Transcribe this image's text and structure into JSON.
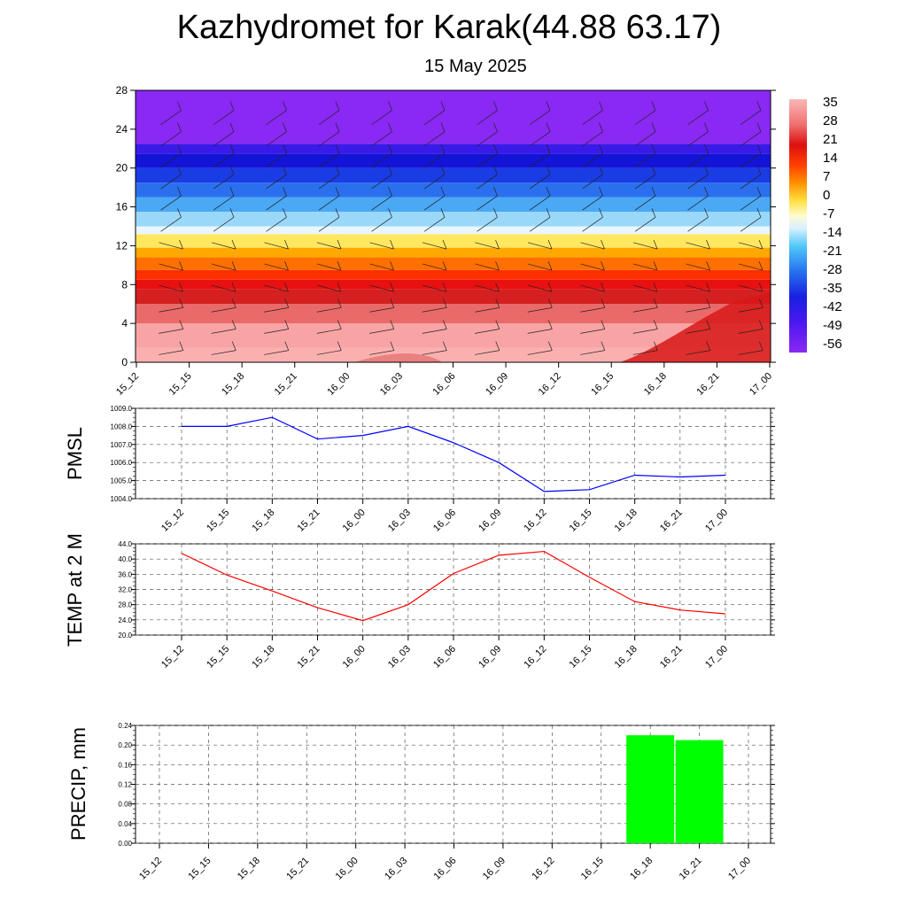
{
  "header": {
    "title": "Kazhydromet for Karak(44.88 63.17)",
    "subtitle": "15 May 2025"
  },
  "chart_data": [
    {
      "type": "heatmap",
      "ylim": [
        0,
        28
      ],
      "yticks": [
        0,
        4,
        8,
        12,
        16,
        20,
        24,
        28
      ],
      "x_tick_labels": [
        "15_12",
        "15_15",
        "15_18",
        "15_21",
        "16_00",
        "16_03",
        "16_06",
        "16_09",
        "16_12",
        "16_15",
        "16_18",
        "16_21",
        "17_00"
      ],
      "colorbar": {
        "labels": [
          "35",
          "28",
          "21",
          "14",
          "7",
          "0",
          "-7",
          "-14",
          "-21",
          "-28",
          "-35",
          "-42",
          "-49",
          "-56"
        ],
        "stops": [
          {
            "offset": 0,
            "color": "#fbb6b6"
          },
          {
            "offset": 0.1,
            "color": "#f07070"
          },
          {
            "offset": 0.18,
            "color": "#dd1010"
          },
          {
            "offset": 0.26,
            "color": "#ff4000"
          },
          {
            "offset": 0.33,
            "color": "#ff9000"
          },
          {
            "offset": 0.4,
            "color": "#ffe040"
          },
          {
            "offset": 0.46,
            "color": "#fffbd0"
          },
          {
            "offset": 0.51,
            "color": "#d8f0ff"
          },
          {
            "offset": 0.58,
            "color": "#50c8f8"
          },
          {
            "offset": 0.67,
            "color": "#2a7af0"
          },
          {
            "offset": 0.78,
            "color": "#1820e0"
          },
          {
            "offset": 0.88,
            "color": "#4a18f0"
          },
          {
            "offset": 1,
            "color": "#8a28f4"
          }
        ]
      },
      "field_bands": [
        {
          "from": 0,
          "to": 1.5,
          "color": "#fbb0b0"
        },
        {
          "from": 1.5,
          "to": 4,
          "color": "#f8a4a4"
        },
        {
          "from": 4,
          "to": 6,
          "color": "#ea6a6a"
        },
        {
          "from": 6,
          "to": 7.5,
          "color": "#d42020"
        },
        {
          "from": 7.5,
          "to": 8.5,
          "color": "#e81010"
        },
        {
          "from": 8.5,
          "to": 9.5,
          "color": "#ff3000"
        },
        {
          "from": 9.5,
          "to": 10.8,
          "color": "#ff7000"
        },
        {
          "from": 10.8,
          "to": 11.8,
          "color": "#ffa800"
        },
        {
          "from": 11.8,
          "to": 13.2,
          "color": "#ffe860"
        },
        {
          "from": 13.2,
          "to": 14,
          "color": "#e8f6ff"
        },
        {
          "from": 14,
          "to": 15.5,
          "color": "#9ad8fa"
        },
        {
          "from": 15.5,
          "to": 17,
          "color": "#4aa8f4"
        },
        {
          "from": 17,
          "to": 18.5,
          "color": "#2a70ee"
        },
        {
          "from": 18.5,
          "to": 20,
          "color": "#1a3ce4"
        },
        {
          "from": 20,
          "to": 21.5,
          "color": "#1414d8"
        },
        {
          "from": 21.5,
          "to": 22.5,
          "color": "#3a1ae8"
        },
        {
          "from": 22.5,
          "to": 28,
          "color": "#8a28f4"
        }
      ]
    },
    {
      "type": "line",
      "ylabel": "PMSL",
      "x": [
        "15_12",
        "15_15",
        "15_18",
        "15_21",
        "16_00",
        "16_03",
        "16_06",
        "16_09",
        "16_12",
        "16_15",
        "16_18",
        "16_21",
        "17_00"
      ],
      "series": [
        {
          "values": [
            1008.0,
            1008.0,
            1008.5,
            1007.3,
            1007.5,
            1008.0,
            1007.1,
            1006.0,
            1004.4,
            1004.5,
            1005.3,
            1005.2,
            1005.3
          ]
        }
      ],
      "ylim": [
        1004.0,
        1009.0
      ],
      "yticks": [
        "1004.0",
        "1005.0",
        "1006.0",
        "1007.0",
        "1008.0",
        "1009.0"
      ],
      "color": "#0000ff"
    },
    {
      "type": "line",
      "ylabel": "TEMP at 2 M",
      "x": [
        "15_12",
        "15_15",
        "15_18",
        "15_21",
        "16_00",
        "16_03",
        "16_06",
        "16_09",
        "16_12",
        "16_15",
        "16_18",
        "16_21",
        "17_00"
      ],
      "series": [
        {
          "values": [
            41.5,
            35.8,
            31.6,
            27.2,
            23.8,
            28.0,
            36.2,
            41.0,
            42.0,
            35.2,
            28.8,
            26.6,
            25.6
          ]
        }
      ],
      "ylim": [
        20.0,
        44.0
      ],
      "yticks": [
        "20.0",
        "24.0",
        "28.0",
        "32.0",
        "36.0",
        "40.0",
        "44.0"
      ],
      "color": "#ff0000"
    },
    {
      "type": "bar",
      "ylabel": "PRECIP, mm",
      "categories": [
        "15_12",
        "15_15",
        "15_18",
        "15_21",
        "16_00",
        "16_03",
        "16_06",
        "16_09",
        "16_12",
        "16_15",
        "16_18",
        "16_21",
        "17_00"
      ],
      "values": [
        0,
        0,
        0,
        0,
        0,
        0,
        0,
        0,
        0,
        0,
        0.22,
        0.21,
        0
      ],
      "ylim": [
        0,
        0.24
      ],
      "yticks": [
        "0.00",
        "0.04",
        "0.08",
        "0.12",
        "0.16",
        "0.20",
        "0.24"
      ],
      "color": "#00ff00"
    }
  ]
}
